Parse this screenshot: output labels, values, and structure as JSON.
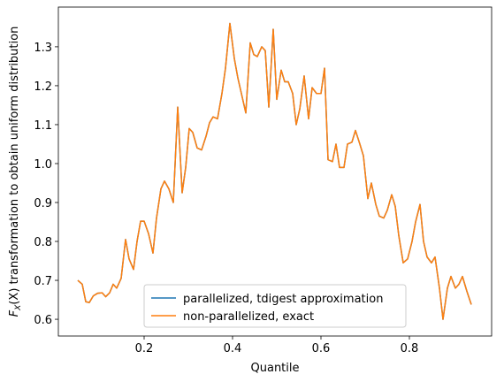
{
  "chart_data": {
    "type": "line",
    "xlabel": "Quantile",
    "ylabel": [
      "F",
      "X",
      "(X)",
      " transformation to obtain uniform distribution"
    ],
    "x": [
      0.05,
      0.06,
      0.068,
      0.076,
      0.085,
      0.095,
      0.105,
      0.113,
      0.122,
      0.13,
      0.138,
      0.148,
      0.158,
      0.166,
      0.176,
      0.184,
      0.192,
      0.2,
      0.21,
      0.22,
      0.228,
      0.238,
      0.246,
      0.256,
      0.266,
      0.276,
      0.286,
      0.294,
      0.302,
      0.31,
      0.32,
      0.33,
      0.34,
      0.348,
      0.356,
      0.366,
      0.376,
      0.384,
      0.394,
      0.404,
      0.412,
      0.422,
      0.43,
      0.44,
      0.448,
      0.456,
      0.466,
      0.474,
      0.482,
      0.492,
      0.5,
      0.51,
      0.518,
      0.526,
      0.536,
      0.544,
      0.552,
      0.562,
      0.572,
      0.58,
      0.59,
      0.6,
      0.608,
      0.616,
      0.626,
      0.634,
      0.642,
      0.652,
      0.66,
      0.67,
      0.678,
      0.688,
      0.696,
      0.706,
      0.714,
      0.724,
      0.732,
      0.742,
      0.75,
      0.76,
      0.768,
      0.776,
      0.786,
      0.796,
      0.806,
      0.814,
      0.824,
      0.832,
      0.84,
      0.85,
      0.858,
      0.868,
      0.876,
      0.886,
      0.894,
      0.904,
      0.912,
      0.92,
      0.93,
      0.94
    ],
    "series": [
      {
        "name": "parallelized, tdigest approximation",
        "color": "#1f77b4",
        "values": [
          0.7,
          0.69,
          0.645,
          0.643,
          0.66,
          0.667,
          0.668,
          0.658,
          0.668,
          0.69,
          0.68,
          0.705,
          0.805,
          0.755,
          0.728,
          0.8,
          0.852,
          0.852,
          0.82,
          0.77,
          0.86,
          0.935,
          0.955,
          0.935,
          0.9,
          1.145,
          0.925,
          0.99,
          1.09,
          1.08,
          1.04,
          1.035,
          1.07,
          1.105,
          1.12,
          1.115,
          1.18,
          1.245,
          1.36,
          1.27,
          1.22,
          1.17,
          1.13,
          1.31,
          1.28,
          1.275,
          1.3,
          1.29,
          1.145,
          1.345,
          1.165,
          1.24,
          1.21,
          1.21,
          1.18,
          1.1,
          1.14,
          1.225,
          1.115,
          1.195,
          1.18,
          1.18,
          1.245,
          1.01,
          1.005,
          1.05,
          0.99,
          0.99,
          1.05,
          1.055,
          1.085,
          1.05,
          1.02,
          0.91,
          0.95,
          0.895,
          0.865,
          0.86,
          0.88,
          0.92,
          0.89,
          0.815,
          0.745,
          0.755,
          0.8,
          0.85,
          0.895,
          0.8,
          0.76,
          0.745,
          0.76,
          0.68,
          0.6,
          0.68,
          0.71,
          0.68,
          0.69,
          0.71,
          0.672,
          0.638
        ]
      },
      {
        "name": "non-parallelized, exact",
        "color": "#ff7f0e",
        "values": [
          0.7,
          0.69,
          0.645,
          0.643,
          0.66,
          0.667,
          0.668,
          0.658,
          0.668,
          0.69,
          0.68,
          0.705,
          0.805,
          0.755,
          0.728,
          0.8,
          0.852,
          0.852,
          0.82,
          0.77,
          0.86,
          0.935,
          0.955,
          0.935,
          0.9,
          1.145,
          0.925,
          0.99,
          1.09,
          1.08,
          1.04,
          1.035,
          1.07,
          1.105,
          1.12,
          1.115,
          1.18,
          1.245,
          1.36,
          1.27,
          1.22,
          1.17,
          1.13,
          1.31,
          1.28,
          1.275,
          1.3,
          1.29,
          1.145,
          1.345,
          1.165,
          1.24,
          1.21,
          1.21,
          1.18,
          1.1,
          1.14,
          1.225,
          1.115,
          1.195,
          1.18,
          1.18,
          1.245,
          1.01,
          1.005,
          1.05,
          0.99,
          0.99,
          1.05,
          1.055,
          1.085,
          1.05,
          1.02,
          0.91,
          0.95,
          0.895,
          0.865,
          0.86,
          0.88,
          0.92,
          0.89,
          0.815,
          0.745,
          0.755,
          0.8,
          0.85,
          0.895,
          0.8,
          0.76,
          0.745,
          0.76,
          0.68,
          0.6,
          0.68,
          0.71,
          0.68,
          0.69,
          0.71,
          0.672,
          0.638
        ]
      }
    ],
    "xlim": [
      0.006,
      0.986
    ],
    "ylim": [
      0.557,
      1.402
    ],
    "xticks": [
      0.2,
      0.4,
      0.6,
      0.8
    ],
    "yticks": [
      0.6,
      0.7,
      0.8,
      0.9,
      {
        "value": 1,
        "label": "1.0"
      },
      1.1,
      1.2,
      1.3
    ],
    "grid": false,
    "legend": "lower center"
  }
}
